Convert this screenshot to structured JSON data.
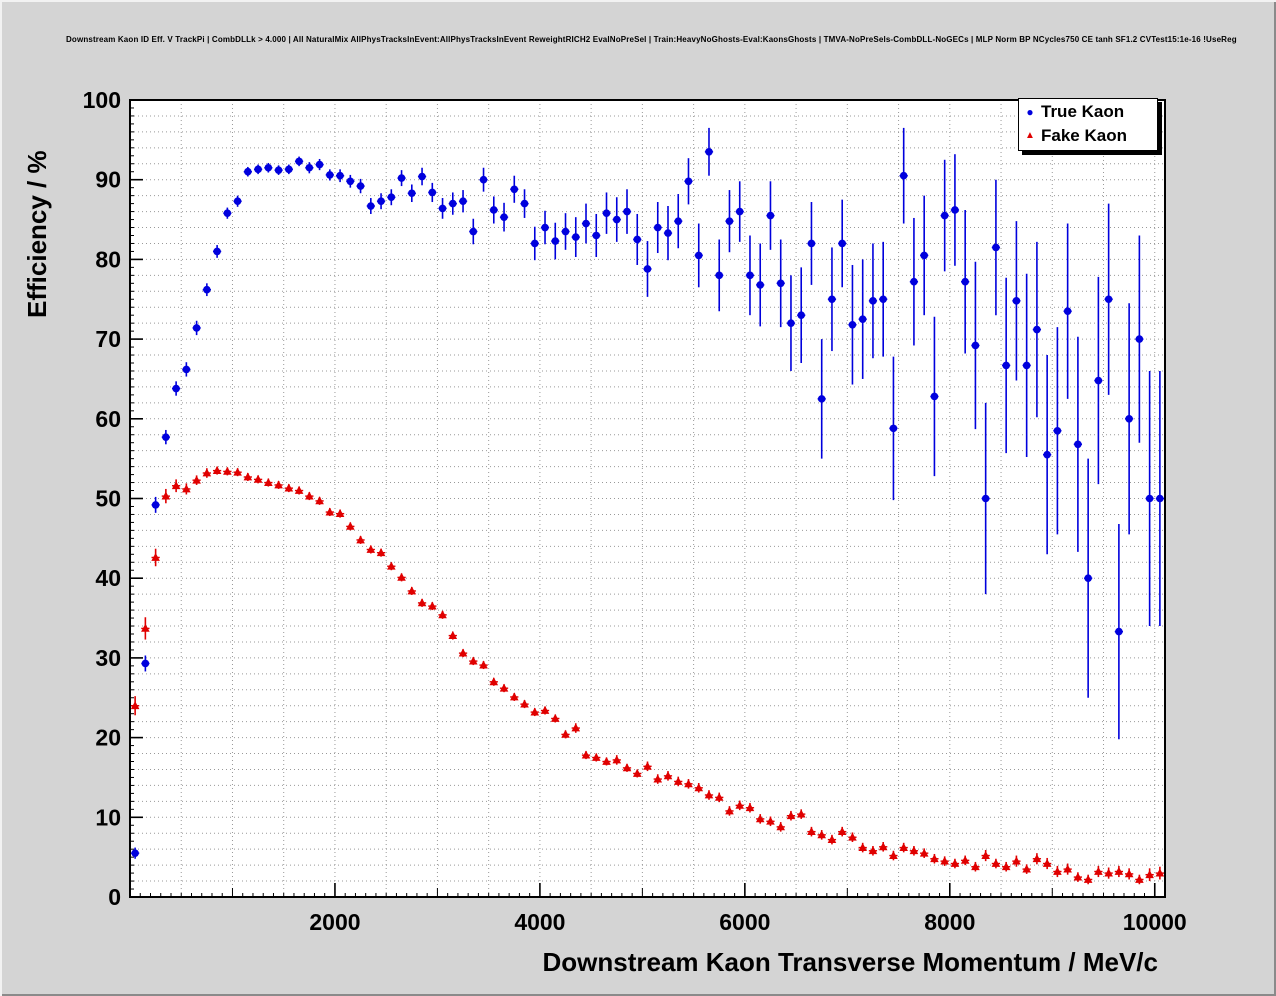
{
  "window": {
    "canvas_bg": "#d4d4d4"
  },
  "chart_data": {
    "type": "scatter",
    "title": "Downstream Kaon ID Eff. V TrackPi | CombDLLk > 4.000 | All NaturalMix AllPhysTracksInEvent:AllPhysTracksInEvent ReweightRICH2 EvalNoPreSel | Train:HeavyNoGhosts-Eval:KaonsGhosts | TMVA-NoPreSels-CombDLL-NoGECs | MLP Norm BP NCycles750 CE tanh SF1.2 CVTest15:1e-16 !UseReg",
    "xlabel": "Downstream Kaon Transverse Momentum / MeV/c",
    "ylabel": "Efficiency / %",
    "xlim": [
      0,
      10100
    ],
    "ylim": [
      0,
      100
    ],
    "x_ticks": [
      2000,
      4000,
      6000,
      8000,
      10000
    ],
    "y_ticks": [
      0,
      10,
      20,
      30,
      40,
      50,
      60,
      70,
      80,
      90,
      100
    ],
    "grid": {
      "x_step": 500,
      "y_step": 2,
      "style": "dotted",
      "color": "#999999"
    },
    "colors": {
      "true_kaon": "#0000dd",
      "fake_kaon": "#e00000",
      "grid": "#999999",
      "frame_bg": "#ffffff",
      "frame_border": "#000000",
      "canvas_bg": "#d4d4d4"
    },
    "legend": {
      "position": "top-right",
      "entries": [
        {
          "label": "True Kaon",
          "marker": "circle",
          "glyph": "●",
          "color": "#0000dd"
        },
        {
          "label": "Fake Kaon",
          "marker": "triangle",
          "glyph": "▲",
          "color": "#e00000"
        }
      ]
    },
    "x_bin_half_width": 50,
    "x": [
      50,
      150,
      250,
      350,
      450,
      550,
      650,
      750,
      850,
      950,
      1050,
      1150,
      1250,
      1350,
      1450,
      1550,
      1650,
      1750,
      1850,
      1950,
      2050,
      2150,
      2250,
      2350,
      2450,
      2550,
      2650,
      2750,
      2850,
      2950,
      3050,
      3150,
      3250,
      3350,
      3450,
      3550,
      3650,
      3750,
      3850,
      3950,
      4050,
      4150,
      4250,
      4350,
      4450,
      4550,
      4650,
      4750,
      4850,
      4950,
      5050,
      5150,
      5250,
      5350,
      5450,
      5550,
      5650,
      5750,
      5850,
      5950,
      6050,
      6150,
      6250,
      6350,
      6450,
      6550,
      6650,
      6750,
      6850,
      6950,
      7050,
      7150,
      7250,
      7350,
      7450,
      7550,
      7650,
      7750,
      7850,
      7950,
      8050,
      8150,
      8250,
      8350,
      8450,
      8550,
      8650,
      8750,
      8850,
      8950,
      9050,
      9150,
      9250,
      9350,
      9450,
      9550,
      9650,
      9750,
      9850,
      9950,
      10050
    ],
    "series": [
      {
        "name": "True Kaon",
        "marker": "circle",
        "color": "#0000dd",
        "y": [
          5.5,
          29.3,
          49.2,
          57.7,
          63.8,
          66.2,
          71.4,
          76.2,
          81.0,
          85.8,
          87.3,
          91.0,
          91.3,
          91.5,
          91.2,
          91.3,
          92.3,
          91.5,
          91.9,
          90.6,
          90.5,
          89.8,
          89.2,
          86.7,
          87.3,
          87.8,
          90.2,
          88.3,
          90.4,
          88.4,
          86.4,
          87.0,
          87.3,
          83.5,
          90.0,
          86.2,
          85.3,
          88.8,
          87.0,
          82.0,
          84.0,
          82.3,
          83.5,
          82.8,
          84.5,
          83.0,
          85.8,
          85.0,
          86.0,
          82.5,
          78.8,
          84.0,
          83.3,
          84.8,
          89.8,
          80.5,
          93.5,
          78.0,
          84.8,
          86.0,
          78.0,
          76.8,
          85.5,
          77.0,
          72.0,
          73.0,
          82.0,
          62.5,
          75.0,
          82.0,
          71.8,
          72.5,
          74.8,
          75.0,
          58.8,
          90.5,
          77.2,
          80.5,
          62.8,
          85.5,
          86.2,
          77.2,
          69.2,
          50.0,
          81.5,
          66.7,
          74.8,
          66.7,
          71.2,
          55.5,
          58.5,
          73.5,
          56.8,
          40.0,
          64.8,
          75.0,
          33.3,
          60.0,
          70.0,
          50.0,
          50.0
        ],
        "yerr": [
          0.7,
          1.0,
          1.0,
          0.9,
          0.9,
          0.9,
          0.9,
          0.8,
          0.8,
          0.7,
          0.7,
          0.6,
          0.6,
          0.6,
          0.6,
          0.6,
          0.6,
          0.7,
          0.7,
          0.7,
          0.8,
          0.8,
          0.9,
          1.0,
          1.0,
          1.0,
          1.0,
          1.1,
          1.1,
          1.2,
          1.3,
          1.4,
          1.4,
          1.6,
          1.5,
          1.7,
          1.8,
          1.7,
          1.8,
          2.1,
          2.1,
          2.3,
          2.3,
          2.5,
          2.5,
          2.7,
          2.6,
          2.8,
          2.8,
          3.2,
          3.5,
          3.2,
          3.4,
          3.4,
          2.9,
          4.0,
          3.0,
          4.5,
          3.9,
          3.8,
          5.0,
          5.2,
          4.3,
          5.5,
          6.0,
          6.0,
          5.2,
          7.5,
          6.5,
          5.5,
          7.5,
          7.5,
          7.2,
          7.2,
          9.0,
          6.0,
          8.0,
          7.5,
          10.0,
          7.0,
          7.0,
          9.0,
          10.5,
          12.0,
          8.5,
          11.0,
          10.0,
          11.5,
          11.0,
          12.5,
          13.0,
          11.0,
          13.5,
          15.0,
          13.0,
          12.0,
          13.5,
          14.5,
          13.0,
          16.0,
          16.0
        ]
      },
      {
        "name": "Fake Kaon",
        "marker": "triangle",
        "color": "#e00000",
        "y": [
          24.0,
          33.7,
          42.6,
          50.3,
          51.6,
          51.2,
          52.3,
          53.2,
          53.5,
          53.4,
          53.3,
          52.7,
          52.4,
          52.0,
          51.7,
          51.3,
          51.0,
          50.3,
          49.7,
          48.3,
          48.1,
          46.5,
          44.8,
          43.6,
          43.2,
          41.5,
          40.1,
          38.4,
          36.9,
          36.5,
          35.4,
          32.8,
          30.6,
          29.6,
          29.1,
          27.0,
          26.2,
          25.1,
          24.2,
          23.2,
          23.4,
          22.4,
          20.4,
          21.2,
          17.8,
          17.5,
          17.0,
          17.2,
          16.2,
          15.5,
          16.4,
          14.8,
          15.2,
          14.5,
          14.2,
          13.7,
          12.8,
          12.5,
          10.8,
          11.5,
          11.2,
          9.8,
          9.5,
          8.8,
          10.2,
          10.4,
          8.2,
          7.8,
          7.2,
          8.2,
          7.5,
          6.2,
          5.8,
          6.3,
          5.2,
          6.2,
          5.8,
          5.5,
          4.8,
          4.5,
          4.2,
          4.6,
          3.8,
          5.2,
          4.2,
          3.8,
          4.5,
          3.5,
          4.8,
          4.2,
          3.2,
          3.5,
          2.5,
          2.2,
          3.2,
          3.0,
          3.2,
          2.9,
          2.2,
          2.8,
          3.0
        ],
        "yerr": [
          1.2,
          1.4,
          1.1,
          0.9,
          0.8,
          0.7,
          0.6,
          0.6,
          0.5,
          0.5,
          0.5,
          0.5,
          0.5,
          0.5,
          0.5,
          0.5,
          0.5,
          0.5,
          0.5,
          0.5,
          0.5,
          0.5,
          0.5,
          0.5,
          0.5,
          0.5,
          0.5,
          0.5,
          0.5,
          0.5,
          0.5,
          0.5,
          0.5,
          0.5,
          0.5,
          0.5,
          0.5,
          0.5,
          0.5,
          0.5,
          0.5,
          0.5,
          0.5,
          0.6,
          0.5,
          0.5,
          0.5,
          0.6,
          0.5,
          0.5,
          0.6,
          0.6,
          0.6,
          0.6,
          0.6,
          0.6,
          0.6,
          0.6,
          0.6,
          0.6,
          0.6,
          0.6,
          0.6,
          0.6,
          0.6,
          0.6,
          0.6,
          0.6,
          0.6,
          0.6,
          0.6,
          0.6,
          0.6,
          0.6,
          0.6,
          0.6,
          0.6,
          0.6,
          0.6,
          0.6,
          0.6,
          0.6,
          0.6,
          0.7,
          0.6,
          0.6,
          0.7,
          0.6,
          0.7,
          0.7,
          0.7,
          0.7,
          0.6,
          0.6,
          0.7,
          0.7,
          0.7,
          0.7,
          0.6,
          0.8,
          0.8
        ]
      }
    ]
  }
}
